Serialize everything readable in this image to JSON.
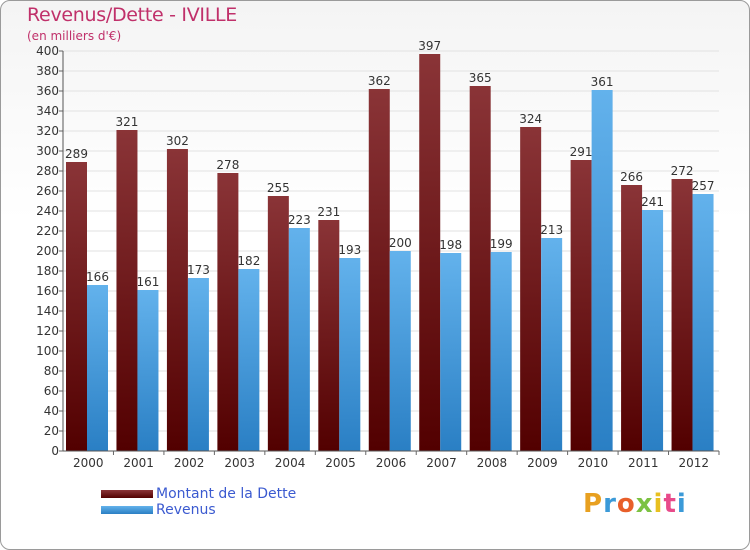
{
  "title": "Revenus/Dette - IVILLE",
  "unit": "(en milliers d'€)",
  "logo": "Proxiti",
  "colors": {
    "dette_dark": "#520000",
    "dette_light": "#8a3437",
    "revenus_dark": "#2a7fc4",
    "revenus_light": "#63b2ec",
    "axis_text": "#333333"
  },
  "chart_data": {
    "type": "bar",
    "title": "Revenus/Dette - IVILLE",
    "ylabel": "(en milliers d'€)",
    "categories": [
      "2000",
      "2001",
      "2002",
      "2003",
      "2004",
      "2005",
      "2006",
      "2007",
      "2008",
      "2009",
      "2010",
      "2011",
      "2012"
    ],
    "series": [
      {
        "name": "Montant de la Dette",
        "values": [
          289,
          321,
          302,
          278,
          255,
          231,
          362,
          397,
          365,
          324,
          291,
          266,
          272
        ]
      },
      {
        "name": "Revenus",
        "values": [
          166,
          161,
          173,
          182,
          223,
          193,
          200,
          198,
          199,
          213,
          361,
          241,
          257
        ]
      }
    ],
    "ylim": [
      0,
      400
    ],
    "ytick_step": 20,
    "grid": true,
    "legend": "bottom-left"
  }
}
